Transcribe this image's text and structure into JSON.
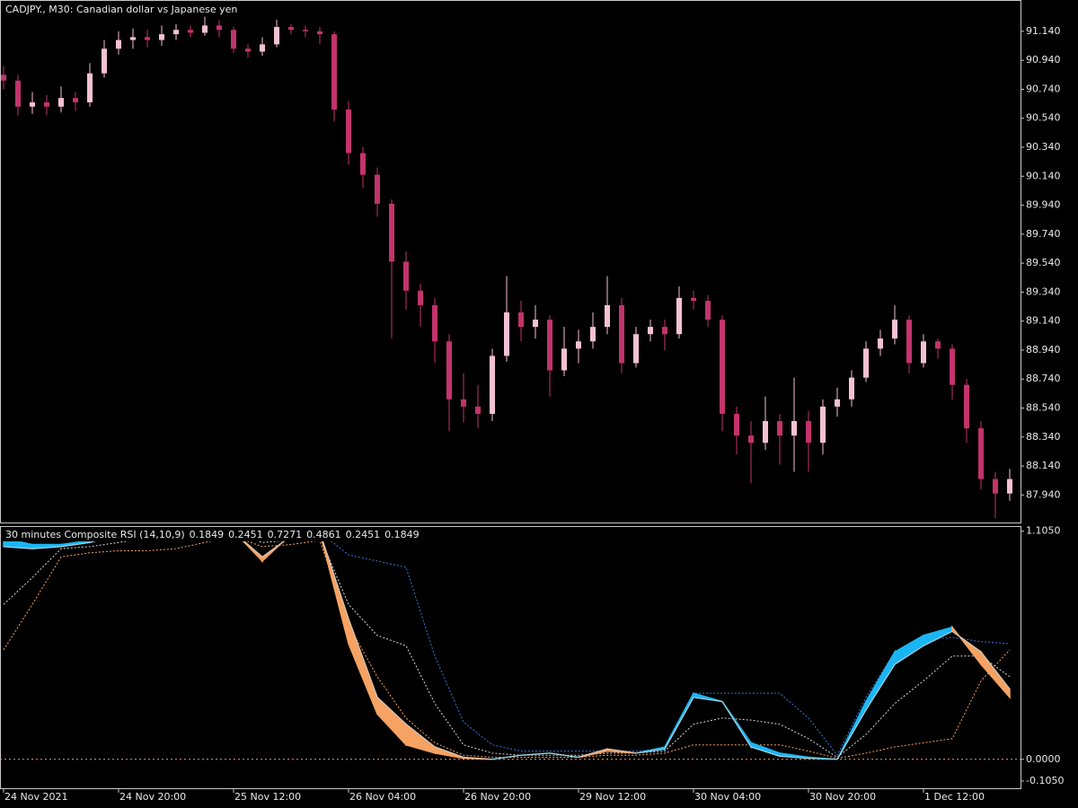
{
  "chart_data": [
    {
      "type": "candlestick",
      "title": "CADJPY., M30:  Canadian dollar vs Japanese yen",
      "x": [
        0,
        2,
        4,
        6,
        8,
        10,
        12,
        14,
        16,
        18,
        20,
        22,
        24,
        26,
        28,
        30,
        32,
        34,
        36,
        38,
        40,
        42,
        44,
        46,
        48,
        50,
        52,
        54,
        56,
        58,
        60,
        62,
        64,
        66,
        68,
        70,
        72,
        74,
        76,
        78,
        80,
        82,
        84,
        86,
        88,
        90,
        92,
        94,
        96,
        98,
        100,
        102,
        104,
        106,
        108,
        110,
        112,
        114,
        116,
        118,
        120,
        122,
        124,
        126,
        128,
        130,
        132,
        134,
        136,
        138,
        140
      ],
      "open": [
        90.84,
        90.8,
        90.62,
        90.65,
        90.62,
        90.68,
        90.65,
        90.85,
        91.02,
        91.08,
        91.1,
        91.08,
        91.12,
        91.15,
        91.13,
        91.18,
        91.15,
        91.02,
        91.0,
        91.05,
        91.17,
        91.15,
        91.14,
        91.12,
        90.6,
        90.3,
        90.15,
        89.95,
        89.55,
        89.35,
        89.25,
        89.0,
        88.6,
        88.55,
        88.5,
        88.9,
        89.2,
        89.1,
        89.15,
        88.8,
        88.95,
        89.0,
        89.1,
        89.25,
        88.85,
        89.05,
        89.1,
        89.05,
        89.3,
        89.28,
        89.15,
        88.5,
        88.35,
        88.3,
        88.45,
        88.35,
        88.45,
        88.3,
        88.55,
        88.6,
        88.75,
        88.95,
        89.02,
        89.15,
        88.85,
        89.0,
        88.95,
        88.7,
        88.4,
        88.05,
        87.95
      ],
      "high": [
        90.9,
        90.84,
        90.72,
        90.7,
        90.76,
        90.72,
        90.92,
        91.08,
        91.14,
        91.16,
        91.15,
        91.18,
        91.19,
        91.18,
        91.24,
        91.22,
        91.17,
        91.05,
        91.1,
        91.22,
        91.19,
        91.18,
        91.17,
        91.14,
        90.66,
        90.34,
        90.2,
        89.98,
        89.62,
        89.4,
        89.3,
        89.05,
        88.78,
        88.7,
        88.95,
        89.45,
        89.28,
        89.25,
        89.18,
        89.1,
        89.08,
        89.2,
        89.45,
        89.3,
        89.1,
        89.15,
        89.15,
        89.38,
        89.35,
        89.32,
        89.18,
        88.55,
        88.45,
        88.62,
        88.5,
        88.75,
        88.52,
        88.6,
        88.68,
        88.8,
        89.0,
        89.08,
        89.25,
        89.18,
        89.05,
        89.02,
        88.98,
        88.74,
        88.45,
        88.1,
        88.12
      ],
      "low": [
        90.74,
        90.56,
        90.57,
        90.56,
        90.58,
        90.59,
        90.62,
        90.82,
        90.98,
        91.02,
        91.03,
        91.04,
        91.08,
        91.1,
        91.11,
        91.1,
        90.99,
        90.96,
        90.97,
        91.03,
        91.12,
        91.1,
        91.05,
        90.52,
        90.22,
        90.06,
        89.86,
        89.02,
        89.22,
        89.1,
        88.85,
        88.38,
        88.44,
        88.4,
        88.45,
        88.86,
        89.0,
        89.02,
        88.62,
        88.76,
        88.85,
        88.95,
        89.05,
        88.78,
        88.82,
        89.0,
        88.94,
        89.02,
        89.22,
        89.1,
        88.38,
        88.22,
        88.02,
        88.25,
        88.15,
        88.1,
        88.1,
        88.22,
        88.48,
        88.55,
        88.72,
        88.9,
        88.98,
        88.78,
        88.82,
        88.88,
        88.6,
        88.3,
        87.98,
        87.78,
        87.9
      ],
      "close": [
        90.8,
        90.62,
        90.65,
        90.62,
        90.68,
        90.65,
        90.85,
        91.02,
        91.08,
        91.1,
        91.08,
        91.12,
        91.15,
        91.13,
        91.18,
        91.15,
        91.02,
        91.0,
        91.05,
        91.17,
        91.15,
        91.14,
        91.12,
        90.6,
        90.3,
        90.15,
        89.95,
        89.55,
        89.35,
        89.25,
        89.0,
        88.6,
        88.55,
        88.5,
        88.9,
        89.2,
        89.1,
        89.15,
        88.8,
        88.95,
        89.0,
        89.1,
        89.25,
        88.85,
        89.05,
        89.1,
        89.05,
        89.3,
        89.28,
        89.15,
        88.5,
        88.35,
        88.3,
        88.45,
        88.35,
        88.45,
        88.3,
        88.55,
        88.6,
        88.75,
        88.95,
        89.02,
        89.15,
        88.85,
        89.0,
        88.95,
        88.7,
        88.4,
        88.05,
        87.95,
        88.05
      ],
      "up_color": "#f3c1d3",
      "down_color": "#c2346b",
      "xlim": [
        -0.5,
        141.5
      ],
      "ylim": [
        87.75,
        91.35
      ],
      "yticks": [
        {
          "value": 91.14,
          "label": "91.140"
        },
        {
          "value": 90.94,
          "label": "90.940"
        },
        {
          "value": 90.74,
          "label": "90.740"
        },
        {
          "value": 90.54,
          "label": "90.540"
        },
        {
          "value": 90.34,
          "label": "90.340"
        },
        {
          "value": 90.14,
          "label": "90.140"
        },
        {
          "value": 89.94,
          "label": "89.940"
        },
        {
          "value": 89.74,
          "label": "89.740"
        },
        {
          "value": 89.54,
          "label": "89.540"
        },
        {
          "value": 89.34,
          "label": "89.340"
        },
        {
          "value": 89.14,
          "label": "89.140"
        },
        {
          "value": 88.94,
          "label": "88.940"
        },
        {
          "value": 88.74,
          "label": "88.740"
        },
        {
          "value": 88.54,
          "label": "88.540"
        },
        {
          "value": 88.34,
          "label": "88.340"
        },
        {
          "value": 88.14,
          "label": "88.140"
        },
        {
          "value": 87.94,
          "label": "87.940"
        }
      ]
    },
    {
      "type": "band",
      "title": "30 minutes Composite RSI (14,10,9)",
      "readouts": [
        0.1849,
        0.2451,
        0.7271,
        0.4861,
        0.2451,
        0.1849
      ],
      "x": [
        0,
        4,
        8,
        12,
        16,
        20,
        24,
        28,
        32,
        36,
        40,
        44,
        48,
        52,
        56,
        60,
        64,
        68,
        72,
        76,
        80,
        84,
        88,
        92,
        96,
        100,
        104,
        108,
        112,
        116,
        120,
        124,
        128,
        132,
        136,
        140
      ],
      "band_a": [
        1.07,
        1.04,
        1.04,
        1.06,
        1.1,
        1.1,
        1.105,
        1.105,
        1.105,
        0.96,
        1.09,
        1.1,
        0.56,
        0.22,
        0.07,
        0.03,
        0.005,
        0,
        0.02,
        0.03,
        0.01,
        0.04,
        0.03,
        0.06,
        0.32,
        0.28,
        0.08,
        0.03,
        0.01,
        0,
        0.28,
        0.52,
        0.6,
        0.64,
        0.46,
        0.3
      ],
      "band_b": [
        1.03,
        1.02,
        1.03,
        1.05,
        1.09,
        1.1,
        1.105,
        1.105,
        1.1,
        0.98,
        1.08,
        1.1,
        0.68,
        0.3,
        0.17,
        0.06,
        0.01,
        0,
        0.02,
        0.03,
        0.01,
        0.05,
        0.03,
        0.05,
        0.3,
        0.28,
        0.06,
        0.015,
        0.005,
        0,
        0.24,
        0.46,
        0.55,
        0.62,
        0.52,
        0.34
      ],
      "up_color": "#1ab6f4",
      "down_color": "#f5a262",
      "line_color": "#c8c8c8",
      "series": [
        {
          "color": "#3a78d8",
          "values": [
            1.09,
            1.1,
            1.1,
            1.1,
            1.105,
            1.105,
            1.105,
            1.105,
            1.105,
            1.1,
            1.1,
            1.1,
            0.99,
            0.96,
            0.93,
            0.5,
            0.18,
            0.07,
            0.04,
            0.04,
            0.04,
            0.04,
            0.04,
            0.05,
            0.32,
            0.32,
            0.32,
            0.32,
            0.2,
            0.02,
            0.3,
            0.52,
            0.58,
            0.59,
            0.57,
            0.56
          ]
        },
        {
          "color": "#d8d8d8",
          "values": [
            0.75,
            0.88,
            1.02,
            1.03,
            1.05,
            1.07,
            1.08,
            1.08,
            1.09,
            1.05,
            1.06,
            1.08,
            0.75,
            0.6,
            0.55,
            0.27,
            0.07,
            0.03,
            0.02,
            0.02,
            0.02,
            0.03,
            0.03,
            0.04,
            0.17,
            0.2,
            0.19,
            0.17,
            0.1,
            0.01,
            0.12,
            0.27,
            0.38,
            0.5,
            0.5,
            0.4
          ]
        },
        {
          "color": "#f5a262",
          "values": [
            0.53,
            0.75,
            0.98,
            1.0,
            1.01,
            1.01,
            1.02,
            1.05,
            1.08,
            1.03,
            1.04,
            1.06,
            0.65,
            0.4,
            0.2,
            0.08,
            0.02,
            0.01,
            0.01,
            0.01,
            0.01,
            0.02,
            0.02,
            0.03,
            0.07,
            0.07,
            0.07,
            0.07,
            0.04,
            0.005,
            0.03,
            0.06,
            0.08,
            0.1,
            0.38,
            0.53
          ]
        }
      ],
      "levels": [
        0
      ],
      "xlim": [
        -0.5,
        141.5
      ],
      "ylim": [
        -0.14,
        1.125
      ],
      "yticks": [
        {
          "value": 1.105,
          "label": "1.1050"
        },
        {
          "value": 0,
          "label": "0.0000"
        },
        {
          "value": -0.105,
          "label": "-0.1050"
        }
      ],
      "xticks": [
        {
          "value": 0,
          "label": "24 Nov 2021"
        },
        {
          "value": 16,
          "label": "24 Nov 20:00"
        },
        {
          "value": 32,
          "label": "25 Nov 12:00"
        },
        {
          "value": 48,
          "label": "26 Nov 04:00"
        },
        {
          "value": 64,
          "label": "26 Nov 20:00"
        },
        {
          "value": 80,
          "label": "29 Nov 12:00"
        },
        {
          "value": 96,
          "label": "30 Nov 04:00"
        },
        {
          "value": 112,
          "label": "30 Nov 20:00"
        },
        {
          "value": 128,
          "label": "1 Dec 12:00"
        }
      ]
    }
  ]
}
